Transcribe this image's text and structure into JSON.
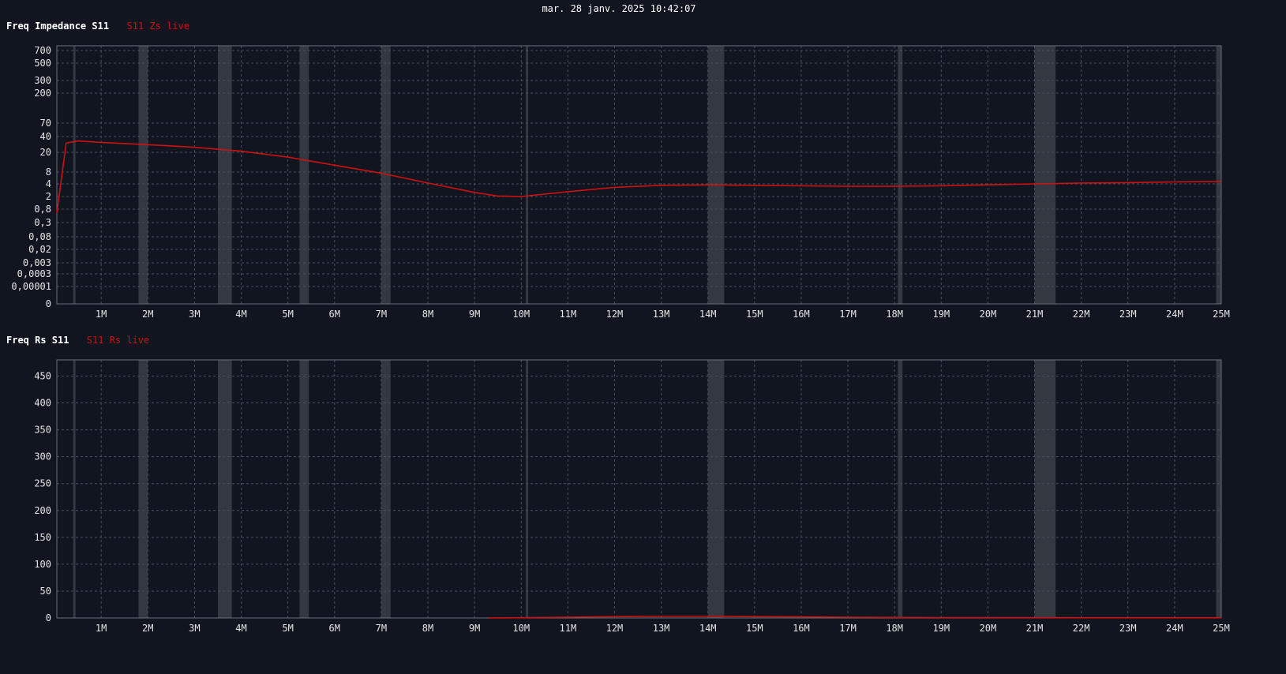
{
  "timestamp": "mar. 28 janv. 2025 10:42:07",
  "colors": {
    "background": "#101520",
    "band": "#3a3e48",
    "series": "#d01010",
    "grid": "#4a5060"
  },
  "bands_mhz": [
    [
      0.4,
      0.45
    ],
    [
      1.8,
      2.0
    ],
    [
      3.5,
      3.8
    ],
    [
      5.25,
      5.45
    ],
    [
      7.0,
      7.2
    ],
    [
      10.1,
      10.15
    ],
    [
      14.0,
      14.35
    ],
    [
      18.07,
      18.17
    ],
    [
      21.0,
      21.45
    ],
    [
      24.89,
      24.99
    ]
  ],
  "chart_data": [
    {
      "type": "line",
      "title": "Freq Impedance S11",
      "legend": "S11 Zs live",
      "xlabel": "",
      "ylabel": "",
      "xlim": [
        0.05,
        25
      ],
      "x_ticks": [
        1,
        2,
        3,
        4,
        5,
        6,
        7,
        8,
        9,
        10,
        11,
        12,
        13,
        14,
        15,
        16,
        17,
        18,
        19,
        20,
        21,
        22,
        23,
        24,
        25
      ],
      "x_tick_labels": [
        "1M",
        "2M",
        "3M",
        "4M",
        "5M",
        "6M",
        "7M",
        "8M",
        "9M",
        "10M",
        "11M",
        "12M",
        "13M",
        "14M",
        "15M",
        "16M",
        "17M",
        "18M",
        "19M",
        "20M",
        "21M",
        "22M",
        "23M",
        "24M",
        "25M"
      ],
      "y_scale": "nonlinear",
      "y_tick_labels": [
        "700",
        "500",
        "300",
        "200",
        "70",
        "40",
        "20",
        "8",
        "4",
        "2",
        "0,8",
        "0,3",
        "0,08",
        "0,02",
        "0,003",
        "0,0003",
        "0,00001",
        "0"
      ],
      "grid": true,
      "series": [
        {
          "name": "S11 Zs live",
          "color": "#d01010",
          "x": [
            0.05,
            0.25,
            0.5,
            1,
            2,
            3,
            4,
            5,
            6,
            7,
            8,
            9,
            9.5,
            10,
            11,
            12,
            13,
            14,
            15,
            16,
            17,
            18,
            19,
            20,
            21,
            22,
            23,
            24,
            25
          ],
          "y": [
            0.6,
            30,
            33,
            31,
            28,
            25,
            21,
            16,
            11,
            7.5,
            4.2,
            2.5,
            2.05,
            2,
            2.6,
            3.3,
            3.7,
            3.8,
            3.7,
            3.6,
            3.5,
            3.5,
            3.6,
            3.8,
            4.0,
            4.2,
            4.3,
            4.5,
            4.6
          ]
        }
      ]
    },
    {
      "type": "line",
      "title": "Freq Rs S11",
      "legend": "S11 Rs live",
      "xlabel": "",
      "ylabel": "",
      "xlim": [
        0.05,
        25
      ],
      "ylim": [
        0,
        480
      ],
      "x_ticks": [
        1,
        2,
        3,
        4,
        5,
        6,
        7,
        8,
        9,
        10,
        11,
        12,
        13,
        14,
        15,
        16,
        17,
        18,
        19,
        20,
        21,
        22,
        23,
        24,
        25
      ],
      "x_tick_labels": [
        "1M",
        "2M",
        "3M",
        "4M",
        "5M",
        "6M",
        "7M",
        "8M",
        "9M",
        "10M",
        "11M",
        "12M",
        "13M",
        "14M",
        "15M",
        "16M",
        "17M",
        "18M",
        "19M",
        "20M",
        "21M",
        "22M",
        "23M",
        "24M",
        "25M"
      ],
      "y_ticks": [
        0,
        50,
        100,
        150,
        200,
        250,
        300,
        350,
        400,
        450
      ],
      "y_tick_labels": [
        "0",
        "50",
        "100",
        "150",
        "200",
        "250",
        "300",
        "350",
        "400",
        "450"
      ],
      "grid": true,
      "series": [
        {
          "name": "S11 Rs live",
          "color": "#d01010",
          "x": [
            9.3,
            10,
            11,
            12,
            13,
            14,
            15,
            16,
            17,
            18,
            19,
            20,
            21,
            22,
            23,
            24,
            25
          ],
          "y": [
            0,
            0.5,
            1.5,
            2.5,
            3,
            3,
            2.5,
            2,
            1.5,
            1,
            0.8,
            0.7,
            0.6,
            0.5,
            0.5,
            0.5,
            0.5
          ]
        }
      ]
    }
  ]
}
